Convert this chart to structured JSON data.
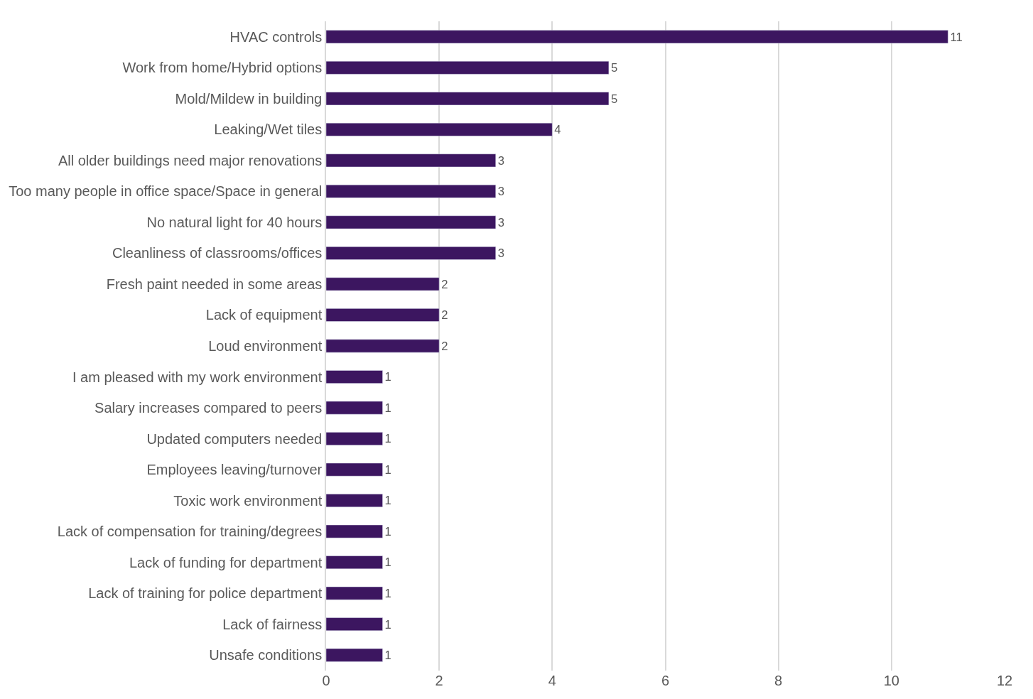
{
  "chart_data": {
    "type": "bar",
    "orientation": "horizontal",
    "categories": [
      "HVAC controls",
      "Work from home/Hybrid options",
      "Mold/Mildew in building",
      "Leaking/Wet tiles",
      "All older buildings need major renovations",
      "Too many people in office space/Space in general",
      "No natural light for 40 hours",
      "Cleanliness of classrooms/offices",
      "Fresh paint needed in some areas",
      "Lack of equipment",
      "Loud environment",
      "I am pleased with my work environment",
      "Salary increases compared to peers",
      "Updated computers needed",
      "Employees leaving/turnover",
      "Toxic work environment",
      "Lack of compensation for training/degrees",
      "Lack of funding for department",
      "Lack of training for police department",
      "Lack of fairness",
      "Unsafe conditions"
    ],
    "values": [
      11,
      5,
      5,
      4,
      3,
      3,
      3,
      3,
      2,
      2,
      2,
      1,
      1,
      1,
      1,
      1,
      1,
      1,
      1,
      1,
      1
    ],
    "color": "#3c1660",
    "xlim": [
      0,
      12
    ],
    "xticks": [
      0,
      2,
      4,
      6,
      8,
      10,
      12
    ],
    "grid": "x",
    "data_labels": true,
    "legend": false
  }
}
